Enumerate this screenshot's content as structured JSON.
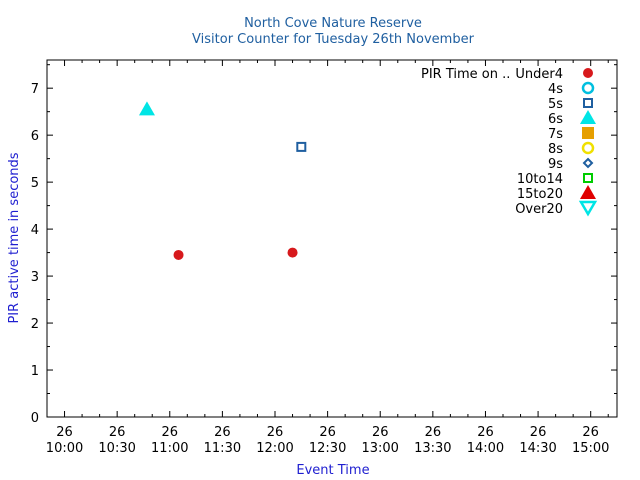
{
  "chart_data": {
    "type": "scatter",
    "title": "North Cove Nature Reserve",
    "subtitle": "Visitor Counter for Tuesday 26th November",
    "xlabel": "Event Time",
    "ylabel": "PIR active time in seconds",
    "xlim": [
      "26 09:50",
      "26 15:15"
    ],
    "ylim": [
      0,
      7.6
    ],
    "x_ticks": [
      {
        "day": "26",
        "time": "10:00"
      },
      {
        "day": "26",
        "time": "10:30"
      },
      {
        "day": "26",
        "time": "11:00"
      },
      {
        "day": "26",
        "time": "11:30"
      },
      {
        "day": "26",
        "time": "12:00"
      },
      {
        "day": "26",
        "time": "12:30"
      },
      {
        "day": "26",
        "time": "13:00"
      },
      {
        "day": "26",
        "time": "13:30"
      },
      {
        "day": "26",
        "time": "14:00"
      },
      {
        "day": "26",
        "time": "14:30"
      },
      {
        "day": "26",
        "time": "15:00"
      }
    ],
    "y_ticks": [
      "0",
      "1",
      "2",
      "3",
      "4",
      "5",
      "6",
      "7"
    ],
    "legend_title": "PIR Time on ..",
    "legend_position": "top-right",
    "grid": false,
    "series": [
      {
        "name": "Under4",
        "marker": "filled-circle",
        "color": "#d7191c",
        "points": [
          {
            "x": "26 11:05",
            "y": 3.45
          },
          {
            "x": "26 12:10",
            "y": 3.5
          }
        ]
      },
      {
        "name": "4s",
        "marker": "open-circle",
        "color": "#00bfdf",
        "points": []
      },
      {
        "name": "5s",
        "marker": "open-square",
        "color": "#1f5fa0",
        "points": [
          {
            "x": "26 12:15",
            "y": 5.75
          }
        ]
      },
      {
        "name": "6s",
        "marker": "filled-triangle-up",
        "color": "#00e5e5",
        "points": [
          {
            "x": "26 10:47",
            "y": 6.55
          }
        ]
      },
      {
        "name": "7s",
        "marker": "filled-square",
        "color": "#e69f00",
        "points": []
      },
      {
        "name": "8s",
        "marker": "open-circle",
        "color": "#f0e000",
        "points": []
      },
      {
        "name": "9s",
        "marker": "open-diamond",
        "color": "#1f5fa0",
        "points": []
      },
      {
        "name": "10to14",
        "marker": "open-square",
        "color": "#00cc00",
        "points": []
      },
      {
        "name": "15to20",
        "marker": "filled-triangle-up",
        "color": "#e00000",
        "points": []
      },
      {
        "name": "Over20",
        "marker": "open-triangle-down",
        "color": "#00e5e5",
        "points": []
      }
    ]
  }
}
